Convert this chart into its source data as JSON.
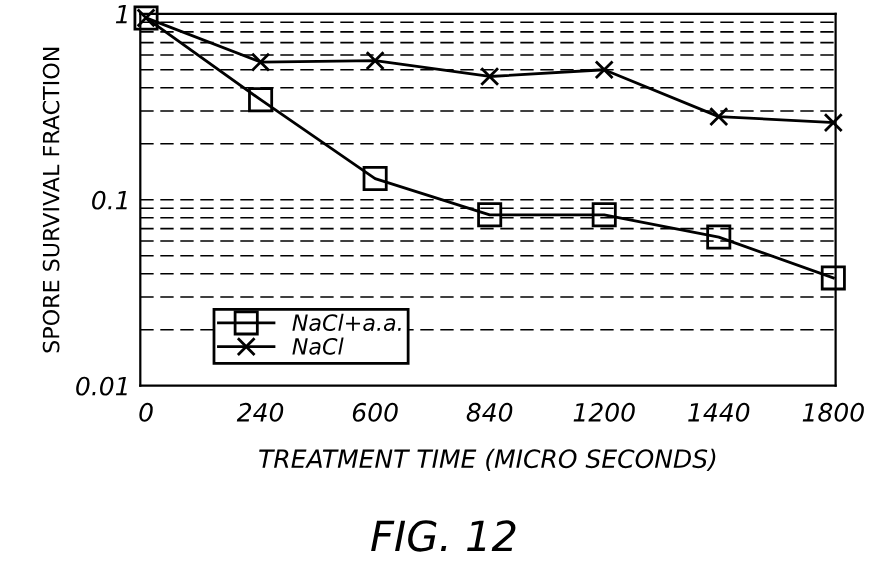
{
  "chart_data": {
    "type": "line",
    "xlabel": "TREATMENT TIME (MICRO SECONDS)",
    "ylabel": "SPORE SURVIVAL FRACTION",
    "categories": [
      "0",
      "240",
      "600",
      "840",
      "1200",
      "1440",
      "1800"
    ],
    "series": [
      {
        "name": "NaCl+a.a.",
        "color": "#000000",
        "marker": "square",
        "values": [
          0.95,
          0.345,
          0.13,
          0.083,
          0.083,
          0.063,
          0.038
        ]
      },
      {
        "name": "NaCl",
        "color": "#000000",
        "marker": "cross",
        "values": [
          0.95,
          0.55,
          0.56,
          0.46,
          0.5,
          0.28,
          0.26
        ]
      }
    ],
    "log": "y",
    "ylim": [
      0.01,
      1
    ],
    "yticks": [
      0.01,
      0.1,
      1
    ],
    "grid": "y",
    "legend": "bottom left",
    "line_style": "solid",
    "annotations": [
      "FIG. 12"
    ]
  }
}
